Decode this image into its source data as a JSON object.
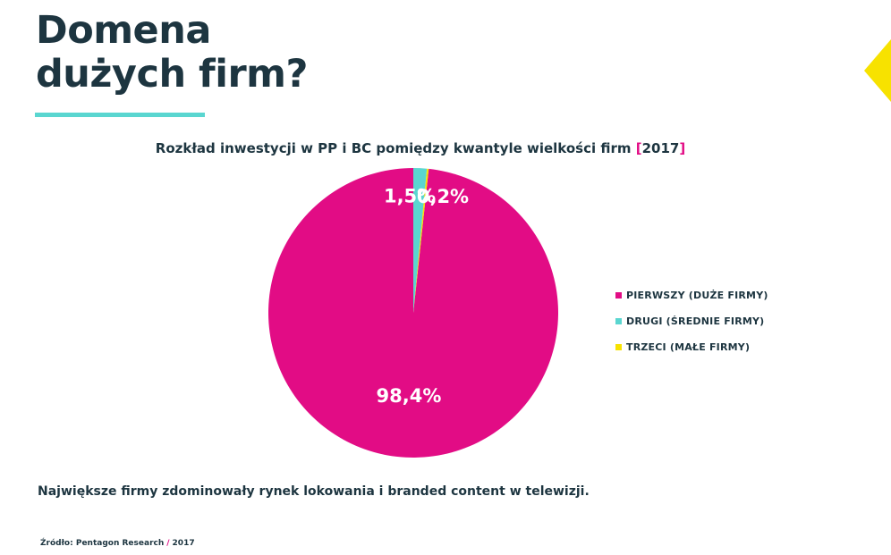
{
  "page": {
    "title_line1": "Domena",
    "title_line2": "dużych firm?",
    "accent_colors": {
      "title_underline": "#5ad6d0",
      "corner_triangle": "#f7e200",
      "brand_pink": "#e20c85"
    },
    "footer_text": "Największe firmy zdominowały rynek lokowania i branded content w telewizji.",
    "source_label": "Źródło: Pentagon Research",
    "source_separator": "/",
    "source_year": "2017"
  },
  "chart_data": {
    "type": "pie",
    "title": "Rozkład inwestycji w PP i BC pomiędzy kwantyle wielkości firm",
    "title_year_open": "[",
    "title_year": "2017",
    "title_year_close": "]",
    "legend_position": "right",
    "slices": [
      {
        "name": "PIERWSZY (DUŻE FIRMY)",
        "value": 98.4,
        "label": "98,4%",
        "color": "#e20c85"
      },
      {
        "name": "DRUGI (ŚREDNIE FIRMY)",
        "value": 1.5,
        "label": "1,5%",
        "color": "#5ad6d0"
      },
      {
        "name": "TRZECI (MAŁE FIRMY)",
        "value": 0.2,
        "label": "0,2%",
        "color": "#f7e200"
      }
    ]
  }
}
